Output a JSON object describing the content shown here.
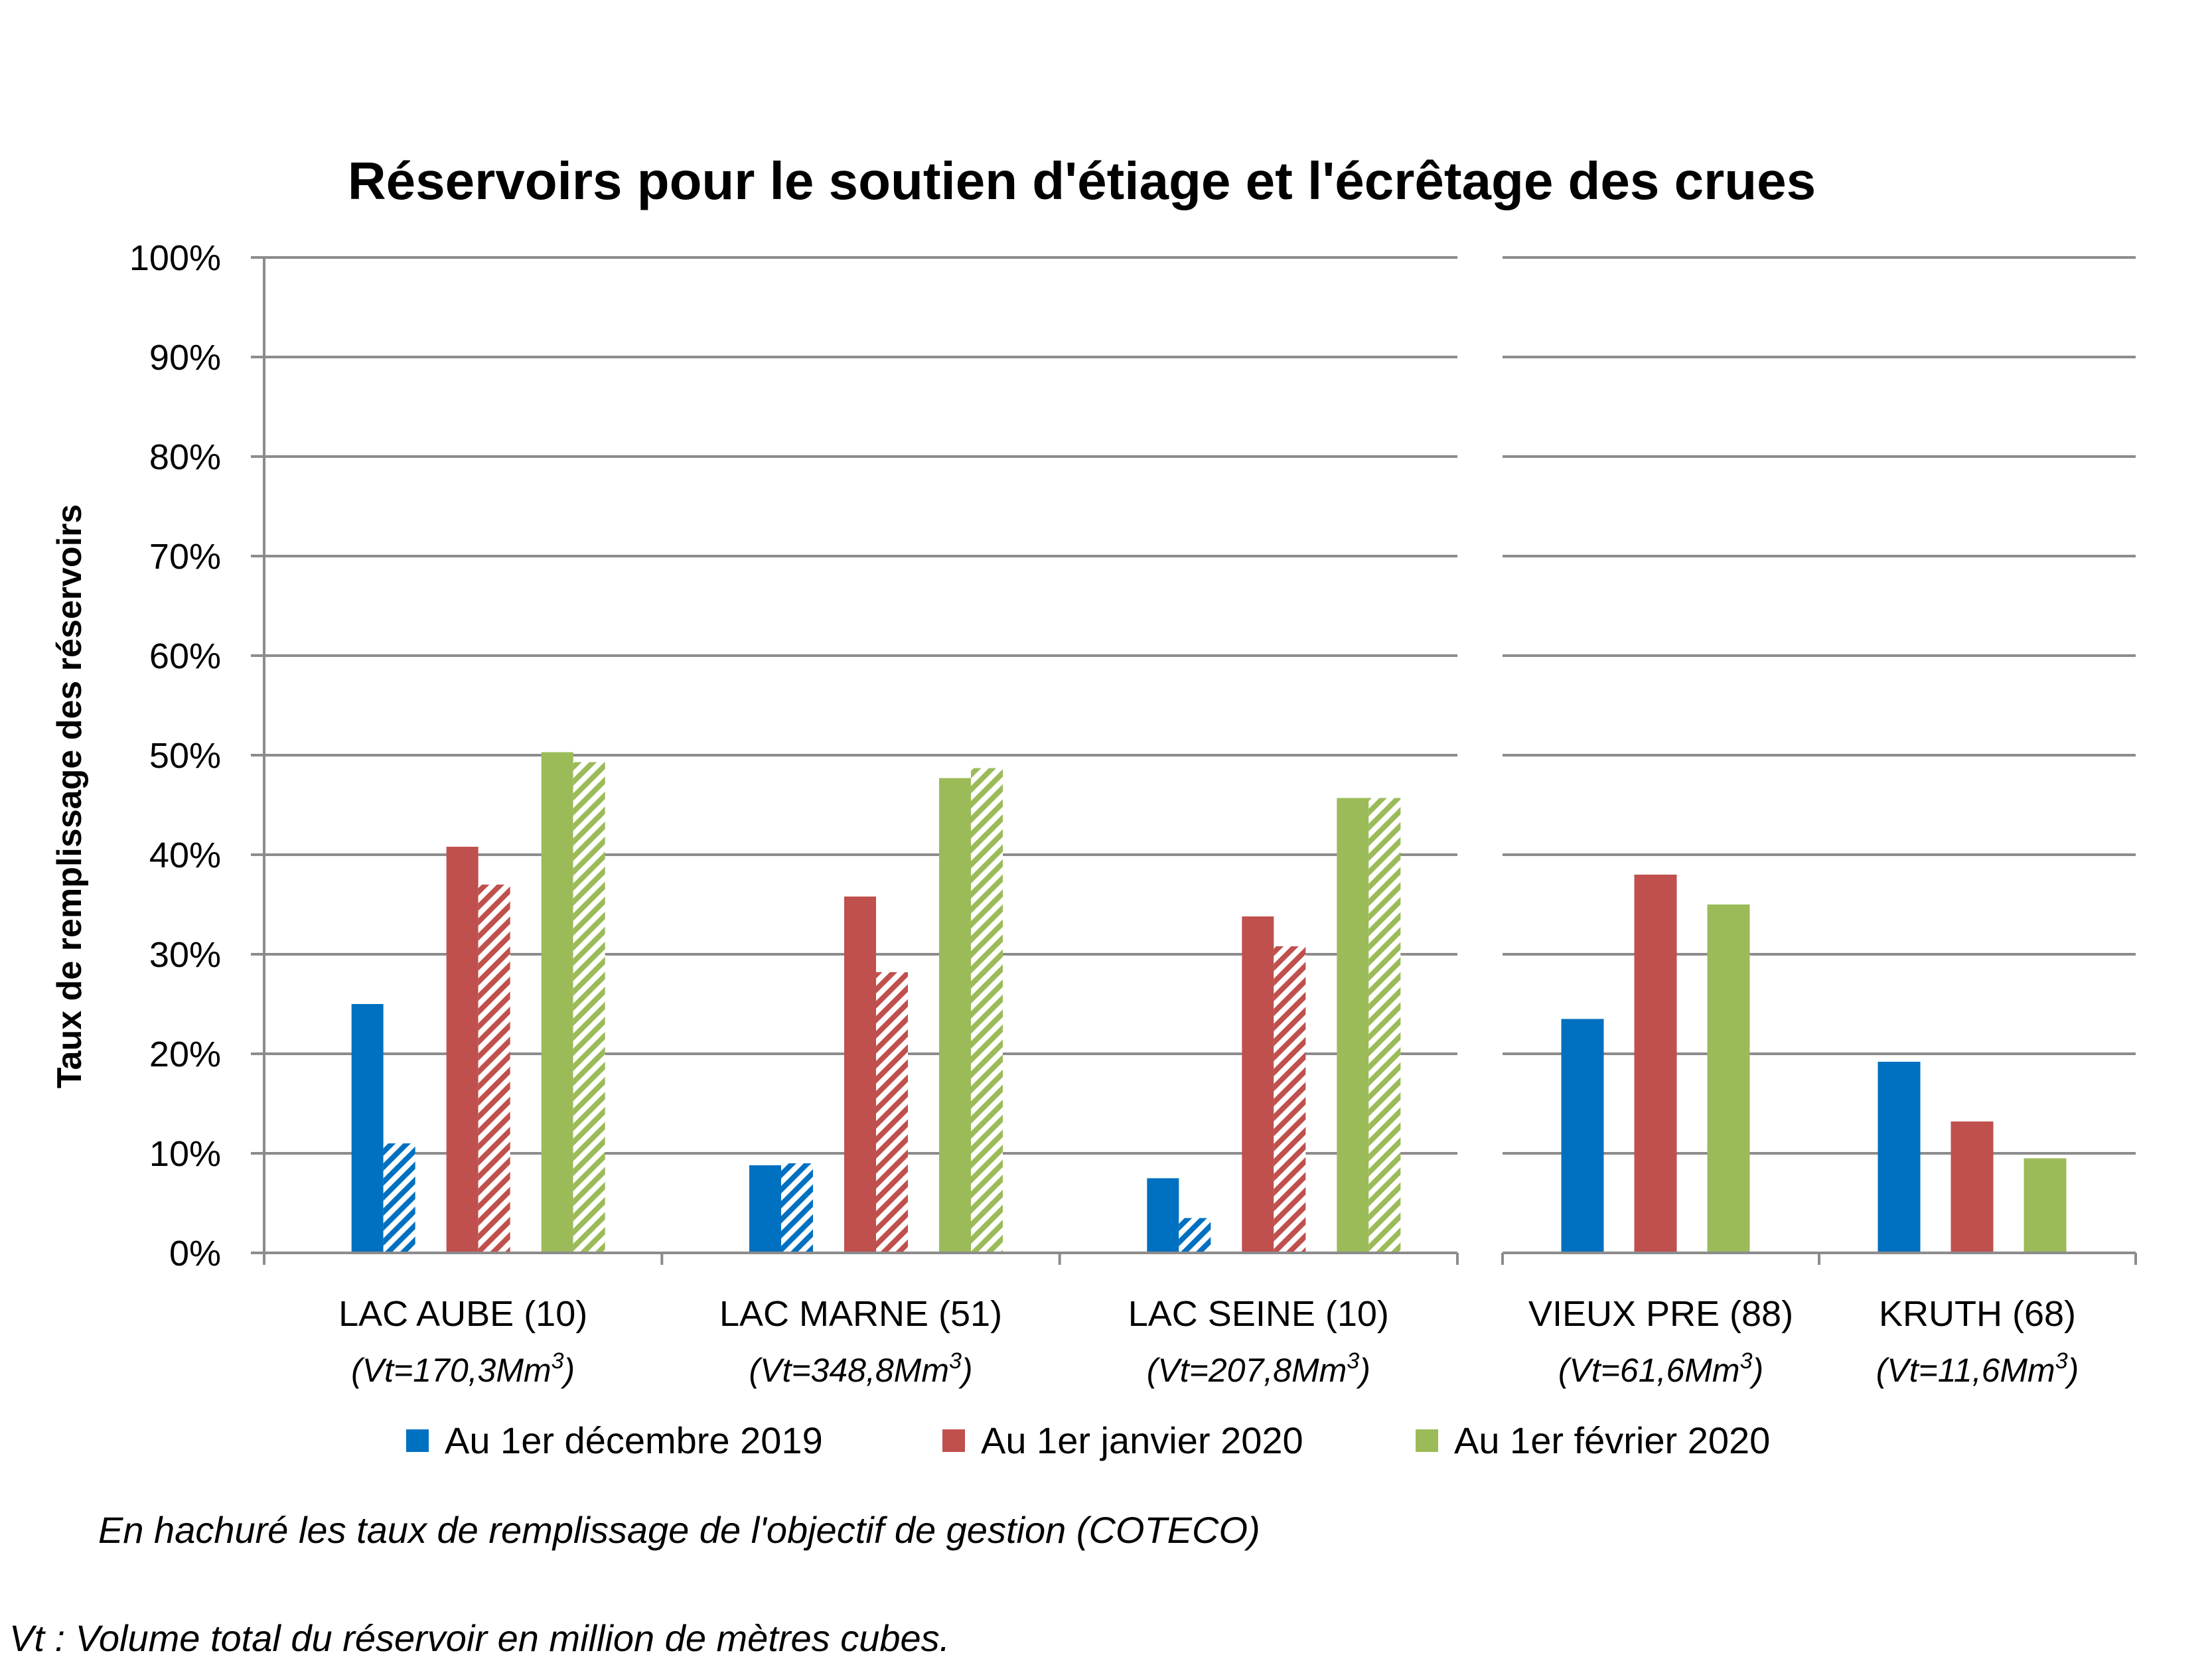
{
  "chart_data": {
    "type": "bar",
    "title": "Réservoirs pour le soutien d'étiage et l'écrêtage des crues",
    "ylabel": "Taux de remplissage des réservoirs",
    "ylim": [
      0,
      100
    ],
    "yticks": [
      "0%",
      "10%",
      "20%",
      "30%",
      "40%",
      "50%",
      "60%",
      "70%",
      "80%",
      "90%",
      "100%"
    ],
    "grid": true,
    "categories": [
      {
        "name": "LAC AUBE (10)",
        "volume": "(Vt=170,3Mm",
        "sup": "3",
        "close": ")"
      },
      {
        "name": "LAC MARNE (51)",
        "volume": "(Vt=348,8Mm",
        "sup": "3",
        "close": ")"
      },
      {
        "name": "LAC SEINE (10)",
        "volume": "(Vt=207,8Mm",
        "sup": "3",
        "close": ")"
      },
      {
        "name": "VIEUX PRE (88)",
        "volume": "(Vt=61,6Mm",
        "sup": "3",
        "close": ")"
      },
      {
        "name": "KRUTH (68)",
        "volume": "(Vt=11,6Mm",
        "sup": "3",
        "close": ")"
      }
    ],
    "series": [
      {
        "name": "Au 1er décembre 2019",
        "color": "#0070C0",
        "values": [
          25,
          8.8,
          7.5,
          23.5,
          19.2
        ]
      },
      {
        "name": "Au 1er janvier 2020",
        "color": "#C0504D",
        "values": [
          40.8,
          35.8,
          33.8,
          38,
          13.2
        ]
      },
      {
        "name": "Au 1er février 2020",
        "color": "#9BBB59",
        "values": [
          50.3,
          47.7,
          45.7,
          35,
          9.5
        ]
      }
    ],
    "hatched_objective": [
      [
        11,
        37,
        49.3
      ],
      [
        9,
        28.2,
        48.7
      ],
      [
        3.5,
        30.8,
        45.7
      ],
      null,
      null
    ],
    "legend_position": "bottom"
  },
  "notes": {
    "hatched": "En hachuré les taux de remplissage de l'objectif de gestion (COTECO)",
    "vt": "Vt : Volume total du réservoir en million de mètres cubes."
  }
}
